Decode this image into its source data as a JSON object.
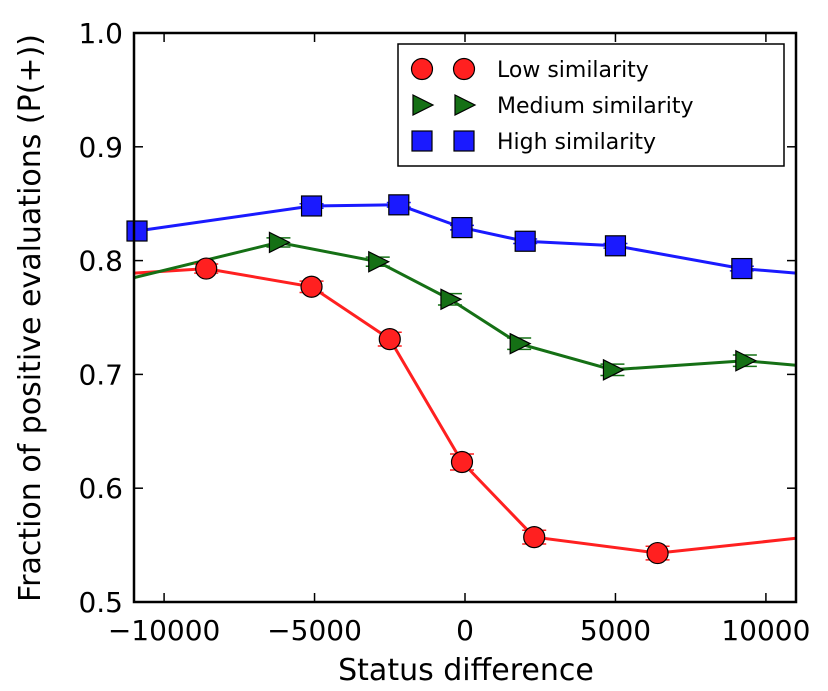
{
  "chart_data": {
    "type": "line",
    "xlabel": "Status difference",
    "ylabel": "Fraction of positive evaluations (P(+))",
    "xlim": [
      -11000,
      11000
    ],
    "ylim": [
      0.5,
      1.0
    ],
    "xticks": [
      -10000,
      -5000,
      0,
      5000,
      10000
    ],
    "xtick_labels": [
      "−10000",
      "−5000",
      "0",
      "5000",
      "10000"
    ],
    "yticks": [
      0.5,
      0.6,
      0.7,
      0.8,
      0.9,
      1.0
    ],
    "ytick_labels": [
      "0.5",
      "0.6",
      "0.7",
      "0.8",
      "0.9",
      "1.0"
    ],
    "grid": false,
    "legend_position": "top-right",
    "series": [
      {
        "name": "Low similarity",
        "color": "#ff2020",
        "marker": "circle",
        "x": [
          -11000,
          -8600,
          -5100,
          -2500,
          -100,
          2300,
          6400,
          11000
        ],
        "y": [
          0.789,
          0.793,
          0.777,
          0.731,
          0.623,
          0.557,
          0.543,
          0.556
        ],
        "err": [
          0,
          0.004,
          0.005,
          0.006,
          0.007,
          0.006,
          0.006,
          0
        ],
        "markers": [
          false,
          true,
          true,
          true,
          true,
          true,
          true,
          false
        ]
      },
      {
        "name": "Medium similarity",
        "color": "#157015",
        "marker": "triangle-right",
        "x": [
          -11000,
          -6200,
          -2900,
          -500,
          1800,
          4900,
          9300,
          11000
        ],
        "y": [
          0.785,
          0.816,
          0.799,
          0.766,
          0.727,
          0.704,
          0.712,
          0.708
        ],
        "err": [
          0,
          0.004,
          0.004,
          0.005,
          0.005,
          0.005,
          0.005,
          0
        ],
        "markers": [
          false,
          true,
          true,
          true,
          true,
          true,
          true,
          false
        ]
      },
      {
        "name": "High similarity",
        "color": "#1a1aff",
        "marker": "square",
        "x": [
          -10900,
          -5100,
          -2200,
          -100,
          2000,
          5000,
          9200,
          11000
        ],
        "y": [
          0.826,
          0.848,
          0.849,
          0.829,
          0.817,
          0.813,
          0.793,
          0.789
        ],
        "err": [
          0,
          0.002,
          0.002,
          0.002,
          0.002,
          0.002,
          0.002,
          0
        ],
        "markers": [
          true,
          true,
          true,
          true,
          true,
          true,
          true,
          false
        ]
      }
    ]
  }
}
